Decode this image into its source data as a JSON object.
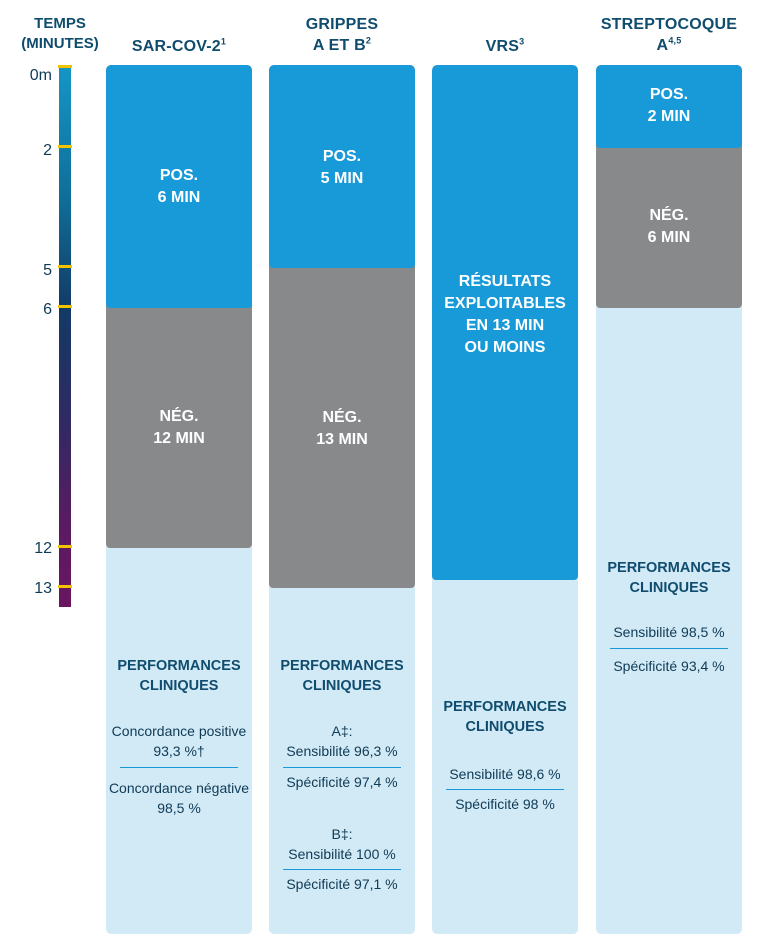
{
  "time_axis": {
    "title_line1": "TEMPS",
    "title_line2": "(MINUTES)",
    "ticks": [
      {
        "value": 0,
        "label": "0m"
      },
      {
        "value": 2,
        "label": "2"
      },
      {
        "value": 5,
        "label": "5"
      },
      {
        "value": 6,
        "label": "6"
      },
      {
        "value": 12,
        "label": "12"
      },
      {
        "value": 13,
        "label": "13"
      }
    ]
  },
  "colors": {
    "positive": "#1899d8",
    "negative": "#87898b",
    "performance_background": "#d2e9f6",
    "heading_text": "#0f4c6e",
    "tick_marker": "#f2c300"
  },
  "columns": {
    "sarscov2": {
      "title": "SAR-COV-2",
      "title_sup": "1",
      "pos_line1": "POS.",
      "pos_line2": "6 MIN",
      "neg_line1": "NÉG.",
      "neg_line2": "12 MIN",
      "perf_line1": "PERFORMANCES",
      "perf_line2": "CLINIQUES",
      "m1_line1": "Concordance positive",
      "m1_line2": "93,3 %†",
      "m2_line1": "Concordance négative",
      "m2_line2": "98,5 %"
    },
    "grippes": {
      "title_line1": "GRIPPES",
      "title_line2": "A ET B",
      "title_sup": "2",
      "pos_line1": "POS.",
      "pos_line2": "5 MIN",
      "neg_line1": "NÉG.",
      "neg_line2": "13 MIN",
      "perf_line1": "PERFORMANCES",
      "perf_line2": "CLINIQUES",
      "a_label": "A‡:",
      "a_sens": "Sensibilité 96,3 %",
      "a_spec": "Spécificité 97,4 %",
      "b_label": "B‡:",
      "b_sens": "Sensibilité 100 %",
      "b_spec": "Spécificité 97,1 %"
    },
    "vrs": {
      "title": "VRS",
      "title_sup": "3",
      "res_line1": "RÉSULTATS",
      "res_line2": "EXPLOITABLES",
      "res_line3": "EN 13 MIN",
      "res_line4": "OU MOINS",
      "perf_line1": "PERFORMANCES",
      "perf_line2": "CLINIQUES",
      "sens": "Sensibilité 98,6 %",
      "spec": "Spécificité 98 %"
    },
    "strep": {
      "title_line1": "STREPTOCOQUE",
      "title_line2": "A",
      "title_sup": "4,5",
      "pos_line1": "POS.",
      "pos_line2": "2 MIN",
      "neg_line1": "NÉG.",
      "neg_line2": "6 MIN",
      "perf_line1": "PERFORMANCES",
      "perf_line2": "CLINIQUES",
      "sens": "Sensibilité 98,5 %",
      "spec": "Spécificité 93,4 %"
    }
  },
  "chart_data": {
    "type": "bar",
    "ylabel": "TEMPS (MINUTES)",
    "ylim": [
      0,
      13
    ],
    "y_ticks": [
      0,
      2,
      5,
      6,
      12,
      13
    ],
    "categories": [
      "SAR-COV-2",
      "GRIPPES A ET B",
      "VRS",
      "STREPTOCOQUE A"
    ],
    "series": [
      {
        "name": "POS.",
        "values": [
          6,
          5,
          null,
          2
        ]
      },
      {
        "name": "NÉG.",
        "values": [
          12,
          13,
          null,
          6
        ]
      },
      {
        "name": "RÉSULTATS EXPLOITABLES EN 13 MIN OU MOINS",
        "values": [
          null,
          null,
          13,
          null
        ]
      }
    ],
    "legend": "none",
    "grid": false
  }
}
